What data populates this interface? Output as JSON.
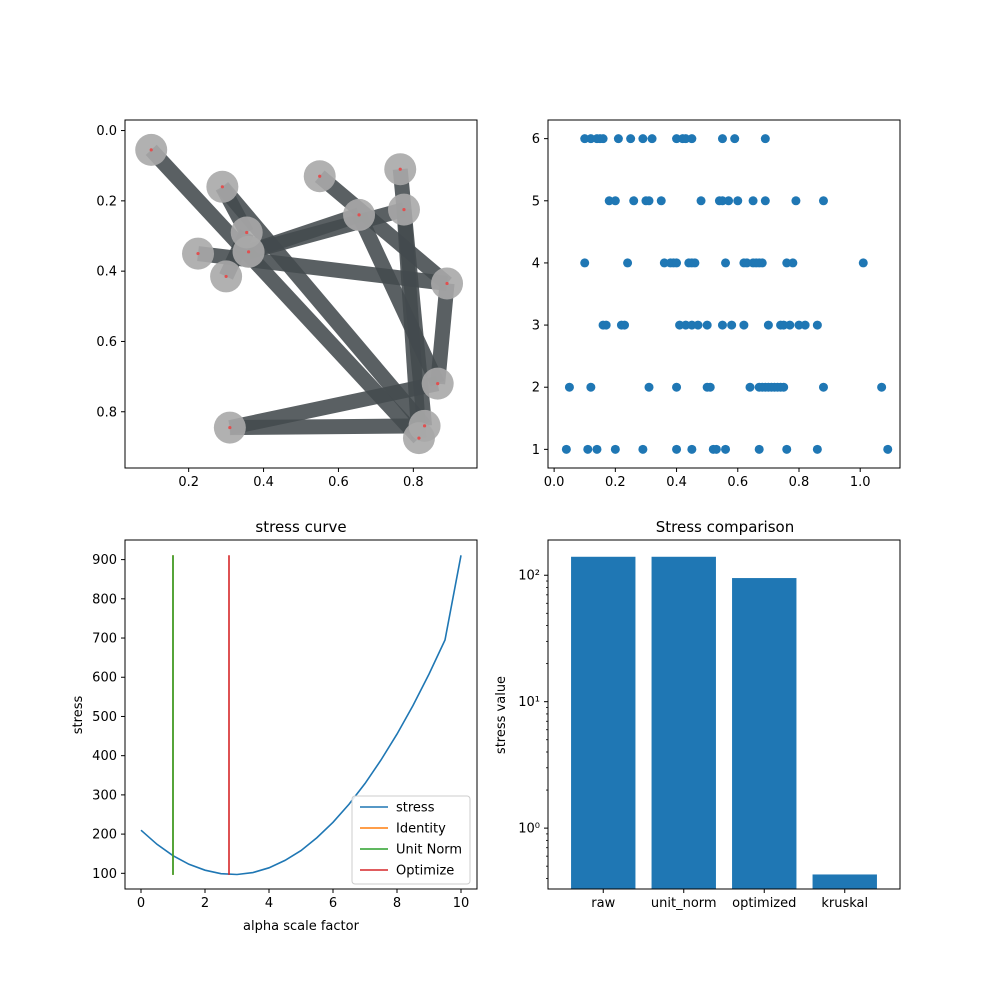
{
  "chart_data": [
    {
      "type": "scatter",
      "subtype": "network-graph",
      "title": "",
      "xlabel": "",
      "ylabel": "",
      "xlim": [
        0.03,
        0.97
      ],
      "ylim": [
        0.96,
        -0.03
      ],
      "y_inverted": true,
      "xticks": [
        0.2,
        0.4,
        0.6,
        0.8
      ],
      "yticks": [
        0.0,
        0.2,
        0.4,
        0.6,
        0.8
      ],
      "node_color": "#a9a9a9",
      "edge_color": "#434a4d",
      "center_color": "#e05050",
      "nodes": [
        {
          "x": 0.1,
          "y": 0.055
        },
        {
          "x": 0.29,
          "y": 0.16
        },
        {
          "x": 0.55,
          "y": 0.13
        },
        {
          "x": 0.765,
          "y": 0.11
        },
        {
          "x": 0.355,
          "y": 0.29
        },
        {
          "x": 0.655,
          "y": 0.24
        },
        {
          "x": 0.775,
          "y": 0.225
        },
        {
          "x": 0.225,
          "y": 0.35
        },
        {
          "x": 0.36,
          "y": 0.345
        },
        {
          "x": 0.3,
          "y": 0.415
        },
        {
          "x": 0.89,
          "y": 0.435
        },
        {
          "x": 0.865,
          "y": 0.72
        },
        {
          "x": 0.31,
          "y": 0.845
        },
        {
          "x": 0.83,
          "y": 0.84
        },
        {
          "x": 0.815,
          "y": 0.875
        }
      ],
      "edges": [
        [
          0,
          14
        ],
        [
          1,
          13
        ],
        [
          2,
          10
        ],
        [
          3,
          13
        ],
        [
          4,
          9
        ],
        [
          5,
          8
        ],
        [
          6,
          14
        ],
        [
          7,
          10
        ],
        [
          8,
          6
        ],
        [
          5,
          11
        ],
        [
          10,
          11
        ],
        [
          11,
          12
        ],
        [
          12,
          13
        ],
        [
          1,
          4
        ]
      ]
    },
    {
      "type": "scatter",
      "title": "",
      "xlabel": "",
      "ylabel": "",
      "xlim": [
        -0.02,
        1.13
      ],
      "ylim": [
        0.7,
        6.3
      ],
      "xticks": [
        0.0,
        0.2,
        0.4,
        0.6,
        0.8,
        1.0
      ],
      "yticks": [
        1,
        2,
        3,
        4,
        5,
        6
      ],
      "color": "#1f77b4",
      "rows": [
        {
          "y": 6,
          "x": [
            0.1,
            0.12,
            0.14,
            0.15,
            0.16,
            0.21,
            0.25,
            0.29,
            0.32,
            0.4,
            0.42,
            0.43,
            0.45,
            0.55,
            0.59,
            0.69
          ]
        },
        {
          "y": 5,
          "x": [
            0.18,
            0.2,
            0.26,
            0.3,
            0.31,
            0.35,
            0.48,
            0.54,
            0.55,
            0.57,
            0.6,
            0.65,
            0.69,
            0.79,
            0.88
          ]
        },
        {
          "y": 4,
          "x": [
            0.1,
            0.24,
            0.36,
            0.38,
            0.39,
            0.4,
            0.44,
            0.45,
            0.46,
            0.56,
            0.62,
            0.63,
            0.65,
            0.66,
            0.67,
            0.68,
            0.76,
            0.78,
            1.01
          ]
        },
        {
          "y": 3,
          "x": [
            0.16,
            0.17,
            0.22,
            0.23,
            0.41,
            0.43,
            0.45,
            0.47,
            0.5,
            0.55,
            0.58,
            0.62,
            0.7,
            0.74,
            0.75,
            0.77,
            0.8,
            0.82,
            0.86
          ]
        },
        {
          "y": 2,
          "x": [
            0.05,
            0.12,
            0.31,
            0.4,
            0.5,
            0.51,
            0.64,
            0.67,
            0.68,
            0.69,
            0.7,
            0.71,
            0.72,
            0.73,
            0.74,
            0.75,
            0.88,
            1.07
          ]
        },
        {
          "y": 1,
          "x": [
            0.04,
            0.11,
            0.14,
            0.2,
            0.29,
            0.4,
            0.45,
            0.52,
            0.53,
            0.56,
            0.67,
            0.76,
            0.86,
            1.09
          ]
        }
      ]
    },
    {
      "type": "line",
      "title": "stress curve",
      "xlabel": "alpha scale factor",
      "ylabel": "stress",
      "xlim": [
        -0.5,
        10.5
      ],
      "ylim": [
        60,
        950
      ],
      "xticks": [
        0,
        2,
        4,
        6,
        8,
        10
      ],
      "yticks": [
        100,
        200,
        300,
        400,
        500,
        600,
        700,
        800,
        900
      ],
      "series": [
        {
          "name": "stress",
          "color": "#1f77b4",
          "x": [
            0,
            0.5,
            1,
            1.5,
            2,
            2.5,
            3,
            3.5,
            4,
            4.5,
            5,
            5.5,
            6,
            6.5,
            7,
            7.5,
            8,
            8.5,
            9,
            9.5,
            10
          ],
          "y": [
            210,
            174,
            145,
            123,
            108,
            99,
            97,
            102,
            114,
            133,
            158,
            191,
            230,
            276,
            329,
            389,
            455,
            528,
            608,
            695,
            911
          ]
        },
        {
          "name": "Identity",
          "color": "#ff7f0e",
          "vline_x": 1,
          "y_range": [
            96,
            911
          ]
        },
        {
          "name": "Unit Norm",
          "color": "#2ca02c",
          "vline_x": 1,
          "y_range": [
            96,
            911
          ]
        },
        {
          "name": "Optimize",
          "color": "#d62728",
          "vline_x": 2.75,
          "y_range": [
            96,
            911
          ]
        }
      ],
      "legend": "lower-right"
    },
    {
      "type": "bar",
      "title": "Stress comparison",
      "xlabel": "",
      "ylabel": "stress value",
      "yscale": "log",
      "ylim": [
        0.33,
        190
      ],
      "ytick_labels": [
        "10⁰",
        "10¹",
        "10²"
      ],
      "ytick_values": [
        1,
        10,
        100
      ],
      "color": "#1f77b4",
      "categories": [
        "raw",
        "unit_norm",
        "optimized",
        "kruskal"
      ],
      "values": [
        140,
        140,
        95,
        0.43
      ]
    }
  ]
}
